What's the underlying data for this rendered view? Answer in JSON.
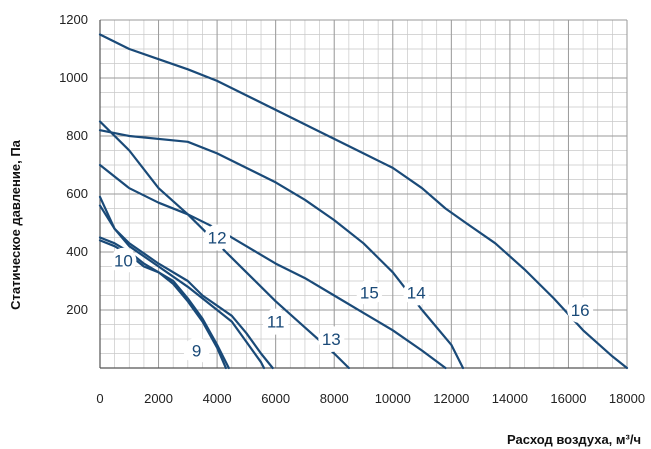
{
  "chart_data": {
    "type": "line",
    "title": "",
    "xlabel": "Расход воздуха, м³/ч",
    "ylabel": "Статическое давление, Па",
    "xlim": [
      0,
      18000
    ],
    "ylim": [
      0,
      1200
    ],
    "x_ticks": [
      "0",
      "2000",
      "4000",
      "6000",
      "8000",
      "10000",
      "12000",
      "14000",
      "16000",
      "18000"
    ],
    "y_ticks": [
      "200",
      "400",
      "600",
      "800",
      "1000",
      "1200"
    ],
    "grid": true,
    "minor_grid_step_x": 500,
    "minor_grid_step_y": 50,
    "line_color": "#1a4a78",
    "series": [
      {
        "name": "9",
        "points": [
          [
            0,
            450
          ],
          [
            500,
            430
          ],
          [
            1000,
            400
          ],
          [
            1500,
            360
          ],
          [
            2000,
            330
          ],
          [
            2500,
            300
          ],
          [
            3000,
            240
          ],
          [
            3500,
            170
          ],
          [
            4000,
            80
          ],
          [
            4400,
            0
          ]
        ]
      },
      {
        "name": "10",
        "points": [
          [
            0,
            440
          ],
          [
            500,
            420
          ],
          [
            1000,
            390
          ],
          [
            1500,
            350
          ],
          [
            2000,
            330
          ],
          [
            2500,
            290
          ],
          [
            3000,
            230
          ],
          [
            3500,
            160
          ],
          [
            4000,
            70
          ],
          [
            4300,
            0
          ]
        ]
      },
      {
        "name": "11",
        "points": [
          [
            0,
            590
          ],
          [
            500,
            480
          ],
          [
            1000,
            420
          ],
          [
            2000,
            350
          ],
          [
            3000,
            280
          ],
          [
            3500,
            240
          ],
          [
            4500,
            160
          ],
          [
            5000,
            90
          ],
          [
            5500,
            20
          ],
          [
            5600,
            0
          ]
        ]
      },
      {
        "name": "12",
        "points": [
          [
            0,
            560
          ],
          [
            500,
            480
          ],
          [
            1000,
            430
          ],
          [
            2000,
            360
          ],
          [
            3000,
            300
          ],
          [
            3500,
            250
          ],
          [
            4500,
            180
          ],
          [
            5000,
            120
          ],
          [
            5500,
            50
          ],
          [
            5900,
            0
          ]
        ]
      },
      {
        "name": "13",
        "points": [
          [
            0,
            850
          ],
          [
            1000,
            750
          ],
          [
            2000,
            620
          ],
          [
            3000,
            530
          ],
          [
            4000,
            430
          ],
          [
            5000,
            330
          ],
          [
            6000,
            230
          ],
          [
            7000,
            140
          ],
          [
            8000,
            50
          ],
          [
            8500,
            0
          ]
        ]
      },
      {
        "name": "15",
        "points": [
          [
            0,
            700
          ],
          [
            1000,
            620
          ],
          [
            2000,
            570
          ],
          [
            3000,
            530
          ],
          [
            4000,
            480
          ],
          [
            5000,
            420
          ],
          [
            6000,
            360
          ],
          [
            7000,
            310
          ],
          [
            8000,
            250
          ],
          [
            9000,
            190
          ],
          [
            10000,
            130
          ],
          [
            11000,
            60
          ],
          [
            11800,
            0
          ]
        ]
      },
      {
        "name": "14",
        "points": [
          [
            0,
            820
          ],
          [
            1000,
            800
          ],
          [
            3000,
            780
          ],
          [
            4000,
            740
          ],
          [
            5000,
            690
          ],
          [
            6000,
            640
          ],
          [
            7000,
            580
          ],
          [
            8000,
            510
          ],
          [
            9000,
            430
          ],
          [
            10000,
            330
          ],
          [
            11000,
            200
          ],
          [
            12000,
            80
          ],
          [
            12400,
            0
          ]
        ]
      },
      {
        "name": "16",
        "points": [
          [
            0,
            1150
          ],
          [
            1000,
            1100
          ],
          [
            2000,
            1065
          ],
          [
            3000,
            1030
          ],
          [
            4000,
            990
          ],
          [
            5000,
            940
          ],
          [
            6000,
            890
          ],
          [
            7000,
            840
          ],
          [
            8000,
            790
          ],
          [
            9000,
            740
          ],
          [
            10000,
            690
          ],
          [
            11000,
            620
          ],
          [
            11800,
            550
          ],
          [
            12500,
            500
          ],
          [
            13500,
            430
          ],
          [
            14500,
            340
          ],
          [
            15500,
            240
          ],
          [
            16500,
            130
          ],
          [
            17500,
            40
          ],
          [
            18000,
            0
          ]
        ]
      }
    ],
    "curve_labels": [
      {
        "text": "9",
        "x": 3300,
        "y": 60
      },
      {
        "text": "10",
        "x": 800,
        "y": 370
      },
      {
        "text": "11",
        "x": 6000,
        "y": 160
      },
      {
        "text": "12",
        "x": 4000,
        "y": 450
      },
      {
        "text": "13",
        "x": 7900,
        "y": 100
      },
      {
        "text": "14",
        "x": 10800,
        "y": 260
      },
      {
        "text": "15",
        "x": 9200,
        "y": 260
      },
      {
        "text": "16",
        "x": 16400,
        "y": 200
      }
    ]
  }
}
